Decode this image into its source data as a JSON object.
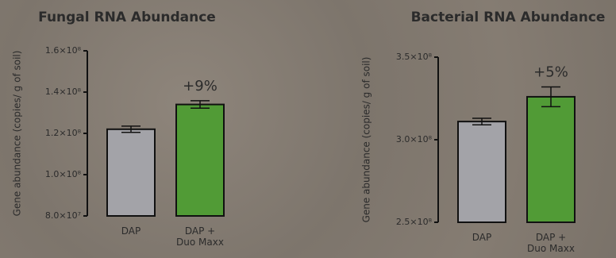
{
  "chart_data": [
    {
      "type": "bar",
      "title": "Fungal RNA Abundance",
      "y_label": "Gene abundance (copies/ g of soil)",
      "categories": [
        "DAP",
        "DAP +\nDuo Maxx"
      ],
      "values": [
        122000000,
        134000000
      ],
      "errors": [
        1500000,
        1800000
      ],
      "colors": [
        "#a3a3a8",
        "#519b36"
      ],
      "annotation": "+9%",
      "ylim": [
        80000000,
        160000000
      ],
      "yticks": [
        {
          "value": 80000000,
          "label": "8.0×10⁷"
        },
        {
          "value": 100000000,
          "label": "1.0×10⁸"
        },
        {
          "value": 120000000,
          "label": "1.2×10⁸"
        },
        {
          "value": 140000000,
          "label": "1.4×10⁸"
        },
        {
          "value": 160000000,
          "label": "1.6×10⁸"
        }
      ]
    },
    {
      "type": "bar",
      "title": "Bacterial RNA Abundance",
      "y_label": "Gene abundance (copies/ g of soil)",
      "categories": [
        "DAP",
        "DAP +\nDuo Maxx"
      ],
      "values": [
        311000000,
        326000000
      ],
      "errors": [
        2000000,
        6000000
      ],
      "colors": [
        "#a3a3a8",
        "#519b36"
      ],
      "annotation": "+5%",
      "ylim": [
        250000000,
        350000000
      ],
      "yticks": [
        {
          "value": 250000000,
          "label": "2.5×10⁸"
        },
        {
          "value": 300000000,
          "label": "3.0×10⁸"
        },
        {
          "value": 350000000,
          "label": "3.5×10⁸"
        }
      ]
    }
  ]
}
